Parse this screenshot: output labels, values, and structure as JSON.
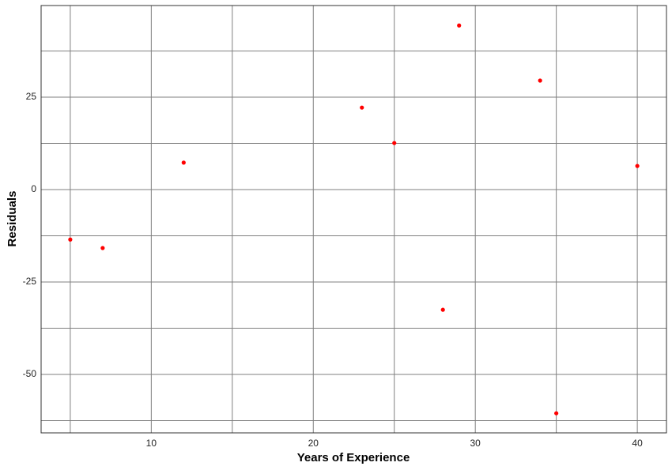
{
  "chart_data": {
    "type": "scatter",
    "x_label": "Years of Experience",
    "y_label": "Residuals",
    "x": [
      5,
      7,
      12,
      23,
      25,
      28,
      29,
      34,
      35,
      40
    ],
    "series": [
      {
        "color": "#ff0000",
        "values": [
          -13.5,
          -15.8,
          7.3,
          22.2,
          12.6,
          -32.5,
          44.4,
          29.5,
          -60.5,
          6.4
        ]
      }
    ],
    "xlim": [
      3.2,
      41.8
    ],
    "ylim": [
      -65.8,
      49.8
    ],
    "xticks": [
      10,
      20,
      30,
      40
    ],
    "yticks": [
      -50,
      -25,
      0,
      25
    ],
    "x_minor_grid": [
      5,
      15,
      25,
      35
    ],
    "y_minor_grid": [
      -62.5,
      -37.5,
      -12.5,
      12.5,
      37.5
    ],
    "grid": true
  }
}
